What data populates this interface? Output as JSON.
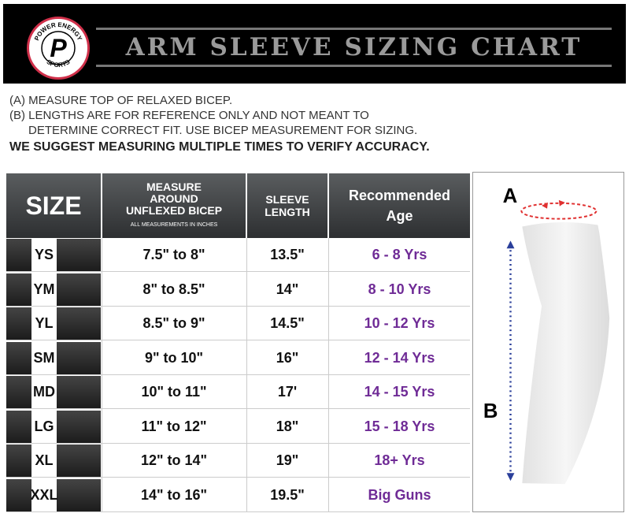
{
  "header": {
    "brand_top": "POWER ENERGY",
    "brand_bottom": "SPORTS",
    "brand_letter": "P",
    "title": "ARM SLEEVE SIZING CHART"
  },
  "notes": {
    "a": "(A) MEASURE TOP OF RELAXED BICEP.",
    "b1": "(B) LENGTHS ARE FOR REFERENCE ONLY AND NOT MEANT TO",
    "b2": "DETERMINE CORRECT FIT. USE BICEP MEASUREMENT FOR SIZING.",
    "suggest": "WE SUGGEST MEASURING MULTIPLE TIMES TO VERIFY ACCURACY."
  },
  "table": {
    "headers": {
      "size": "SIZE",
      "bicep_1": "MEASURE",
      "bicep_2": "AROUND",
      "bicep_3": "UNFLEXED BICEP",
      "bicep_note": "ALL MEASUREMENTS IN INCHES",
      "length_1": "SLEEVE",
      "length_2": "LENGTH",
      "age_1": "Recommended",
      "age_2": "Age"
    },
    "rows": [
      {
        "size": "YS",
        "bicep": "7.5\" to 8\"",
        "length": "13.5\"",
        "age": "6 - 8 Yrs"
      },
      {
        "size": "YM",
        "bicep": "8\" to 8.5\"",
        "length": "14\"",
        "age": "8 - 10 Yrs"
      },
      {
        "size": "YL",
        "bicep": "8.5\" to 9\"",
        "length": "14.5\"",
        "age": "10 - 12 Yrs"
      },
      {
        "size": "SM",
        "bicep": "9\" to 10\"",
        "length": "16\"",
        "age": "12 - 14 Yrs"
      },
      {
        "size": "MD",
        "bicep": "10\" to 11\"",
        "length": "17'",
        "age": "14 - 15 Yrs"
      },
      {
        "size": "LG",
        "bicep": "11\" to 12\"",
        "length": "18\"",
        "age": "15 - 18 Yrs"
      },
      {
        "size": "XL",
        "bicep": "12\" to 14\"",
        "length": "19\"",
        "age": "18+ Yrs"
      },
      {
        "size": "XXL",
        "bicep": "14\" to 16\"",
        "length": "19.5\"",
        "age": "Big Guns"
      }
    ]
  },
  "diagram": {
    "label_a": "A",
    "label_b": "B",
    "arrow_a_color": "#e03030",
    "arrow_b_color": "#2a3f9a"
  },
  "colors": {
    "age_text": "#6f2b96"
  }
}
